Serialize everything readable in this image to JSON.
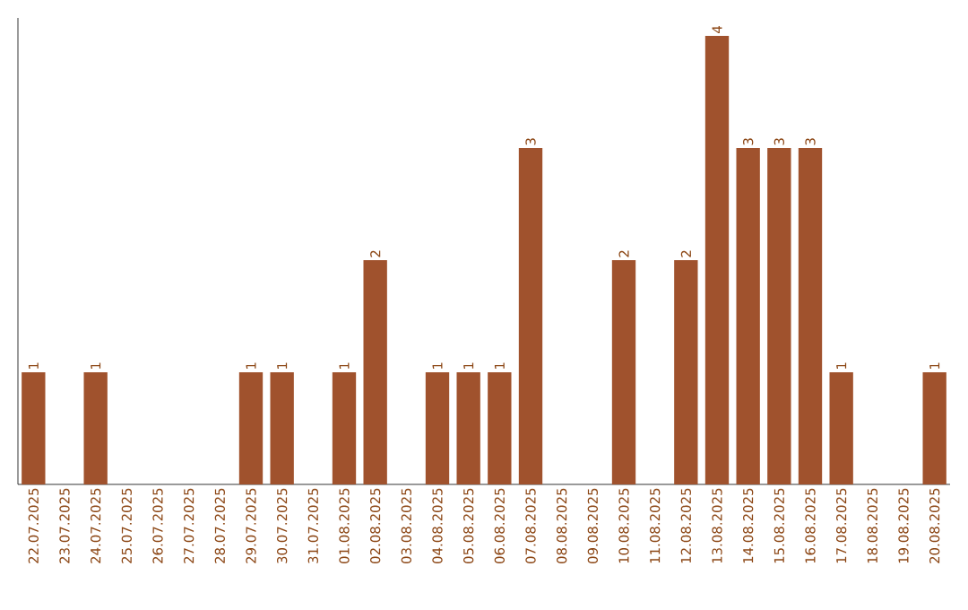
{
  "chart_data": {
    "type": "bar",
    "categories": [
      "22.07.2025",
      "23.07.2025",
      "24.07.2025",
      "25.07.2025",
      "26.07.2025",
      "27.07.2025",
      "28.07.2025",
      "29.07.2025",
      "30.07.2025",
      "31.07.2025",
      "01.08.2025",
      "02.08.2025",
      "03.08.2025",
      "04.08.2025",
      "05.08.2025",
      "06.08.2025",
      "07.08.2025",
      "08.08.2025",
      "09.08.2025",
      "10.08.2025",
      "11.08.2025",
      "12.08.2025",
      "13.08.2025",
      "14.08.2025",
      "15.08.2025",
      "16.08.2025",
      "17.08.2025",
      "18.08.2025",
      "19.08.2025",
      "20.08.2025"
    ],
    "values": [
      1,
      0,
      1,
      0,
      0,
      0,
      0,
      1,
      1,
      0,
      1,
      2,
      0,
      1,
      1,
      1,
      3,
      0,
      0,
      2,
      0,
      2,
      4,
      3,
      3,
      3,
      1,
      0,
      0,
      1
    ],
    "value_labels": [
      "1",
      null,
      "1",
      null,
      null,
      null,
      null,
      "1",
      "1",
      null,
      "1",
      "2",
      null,
      "1",
      "1",
      "1",
      "3",
      null,
      null,
      "2",
      null,
      "2",
      "4",
      "3",
      "3",
      "3",
      "1",
      null,
      null,
      "1"
    ],
    "color": "#a0522d"
  }
}
